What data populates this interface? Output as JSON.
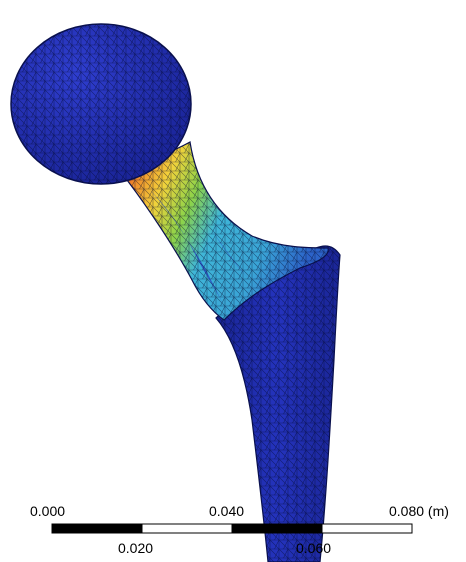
{
  "scale_bar": {
    "unit": "(m)",
    "tick_labels": [
      "0.000",
      "0.020",
      "0.040",
      "0.060",
      "0.080 (m)"
    ],
    "segments": [
      {
        "from": 0.0,
        "to": 0.02,
        "fill": "#000000"
      },
      {
        "from": 0.02,
        "to": 0.04,
        "fill": "#ffffff"
      },
      {
        "from": 0.04,
        "to": 0.06,
        "fill": "#000000"
      },
      {
        "from": 0.06,
        "to": 0.08,
        "fill": "#ffffff"
      }
    ]
  },
  "colors": {
    "background": "#ffffff",
    "mesh_base": "#1f2db3",
    "mesh_lines": "#000a2e",
    "contour_low": "#2636c6",
    "contour_cyan": "#3fb6d8",
    "contour_green": "#8cd34a",
    "contour_yellow": "#f2d23b",
    "contour_orange": "#f08a2a",
    "contour_red": "#d0231f"
  }
}
